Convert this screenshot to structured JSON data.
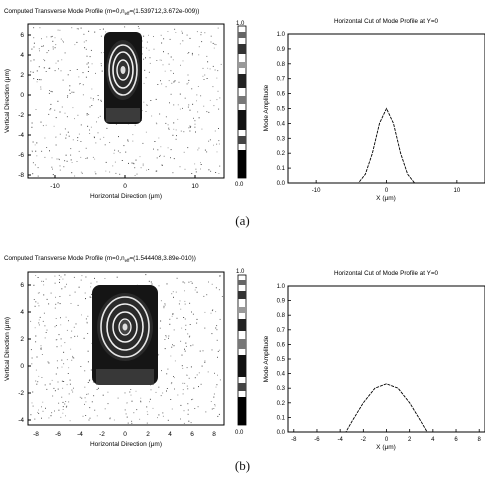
{
  "panel_a": {
    "caption": "(a)",
    "profile_title": "Computed Transverse Mode Profile (m=0,n",
    "profile_title_sub": "eff",
    "profile_title_tail": "=(1.539712,3.672e-009))",
    "profile_xlabel": "Horizontal Direction (μm)",
    "profile_ylabel": "Vertical Direction (μm)",
    "profile_xticks": [
      "-10",
      "0",
      "10"
    ],
    "profile_yticks": [
      "6",
      "4",
      "2",
      "0",
      "-2",
      "-4",
      "-6",
      "-8"
    ],
    "colorbar_top": "1.0",
    "colorbar_bottom": "0.0"
  },
  "panel_b": {
    "caption": "(b)",
    "profile_title": "Computed Transverse Mode Profile (m=0,n",
    "profile_title_sub": "eff",
    "profile_title_tail": "=(1.544408,3.89e-010))",
    "profile_xlabel": "Horizontal Direction (μm)",
    "profile_ylabel": "Vertical Direction (μm)",
    "profile_xticks": [
      "-8",
      "-6",
      "-4",
      "-2",
      "0",
      "2",
      "4",
      "6",
      "8"
    ],
    "profile_yticks": [
      "6",
      "4",
      "2",
      "0",
      "-2",
      "-4"
    ],
    "colorbar_top": "1.0",
    "colorbar_bottom": "0.0"
  },
  "chart_data": [
    {
      "id": "a_cut",
      "type": "line",
      "title": "Horizontal Cut of Mode Profile at Y=0",
      "xlabel": "X (μm)",
      "ylabel": "Mode Amplitude",
      "xlim": [
        -14,
        14
      ],
      "ylim": [
        0,
        1.0
      ],
      "xticks": [
        "-10",
        "0",
        "10"
      ],
      "xtick_values": [
        -10,
        0,
        10
      ],
      "yticks": [
        "0.0",
        "0.1",
        "0.2",
        "0.3",
        "0.4",
        "0.5",
        "0.6",
        "0.7",
        "0.8",
        "0.9",
        "1.0"
      ],
      "x": [
        -14,
        -4,
        -3,
        -2,
        -1,
        0,
        1,
        2,
        3,
        4,
        14
      ],
      "y": [
        0,
        0,
        0.06,
        0.2,
        0.4,
        0.5,
        0.4,
        0.2,
        0.06,
        0,
        0
      ]
    },
    {
      "id": "b_cut",
      "type": "line",
      "title": "Horizontal Cut of Mode Profile at Y=0",
      "xlabel": "X (μm)",
      "ylabel": "Mode Amplitude",
      "xlim": [
        -8.5,
        8.5
      ],
      "ylim": [
        0,
        1.0
      ],
      "xticks": [
        "-8",
        "-6",
        "-4",
        "-2",
        "0",
        "2",
        "4",
        "6",
        "8"
      ],
      "xtick_values": [
        -8,
        -6,
        -4,
        -2,
        0,
        2,
        4,
        6,
        8
      ],
      "yticks": [
        "0.0",
        "0.1",
        "0.2",
        "0.3",
        "0.4",
        "0.5",
        "0.6",
        "0.7",
        "0.8",
        "0.9",
        "1.0"
      ],
      "x": [
        -8.5,
        -3.5,
        -3,
        -2,
        -1,
        0,
        1,
        2,
        3,
        3.5,
        8.5
      ],
      "y": [
        0,
        0,
        0.07,
        0.2,
        0.3,
        0.33,
        0.3,
        0.2,
        0.07,
        0,
        0
      ]
    }
  ]
}
